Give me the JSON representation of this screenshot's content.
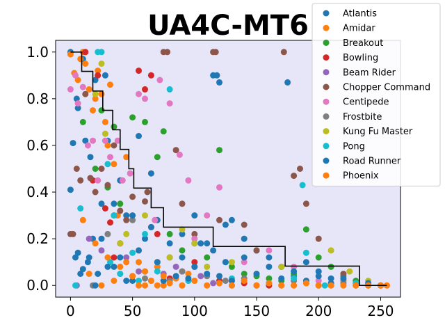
{
  "chart_data": {
    "type": "scatter",
    "title": "UA4C-MT6",
    "xlabel": "",
    "ylabel": "",
    "xlim": [
      -12,
      266
    ],
    "ylim": [
      -0.05,
      1.05
    ],
    "xticks": [
      0,
      50,
      100,
      150,
      200,
      250
    ],
    "xtick_labels": [
      "0",
      "50",
      "100",
      "150",
      "200",
      "250"
    ],
    "yticks": [
      0.0,
      0.2,
      0.4,
      0.6,
      0.8,
      1.0
    ],
    "ytick_labels": [
      "0.0",
      "0.2",
      "0.4",
      "0.6",
      "0.8",
      "1.0"
    ],
    "background": "#e6e6f8",
    "grid": false,
    "legend_position": "top-right",
    "series": [
      {
        "name": "Atlantis",
        "color": "#1f77b4",
        "x": [
          0,
          2,
          4,
          5,
          6,
          8,
          10,
          12,
          14,
          16,
          18,
          20,
          22,
          25,
          28,
          30,
          35,
          40,
          45,
          50,
          55,
          60,
          65,
          70,
          80,
          90,
          100,
          110,
          115,
          118,
          120,
          125,
          130,
          140,
          150,
          160,
          170,
          175,
          180,
          190,
          200,
          210,
          220,
          230,
          240,
          250
        ],
        "y": [
          1.0,
          0.61,
          0.12,
          0.8,
          0.76,
          0.05,
          0.97,
          0.62,
          0.1,
          0.55,
          0.2,
          0.88,
          0.05,
          0.35,
          0.9,
          0.62,
          0.08,
          0.45,
          0.3,
          0.02,
          0.64,
          0.2,
          0.48,
          0.28,
          0.12,
          0.22,
          0.3,
          0.18,
          0.9,
          0.9,
          0.87,
          0.26,
          0.28,
          0.2,
          0.15,
          0.12,
          0.08,
          0.87,
          0.04,
          0.1,
          0.06,
          0.03,
          0.02,
          0.01,
          0.0,
          0.0
        ]
      },
      {
        "name": "Amidar",
        "color": "#ff7f0e",
        "x": [
          0,
          3,
          6,
          8,
          10,
          12,
          15,
          18,
          20,
          22,
          25,
          28,
          30,
          32,
          35,
          38,
          40,
          45,
          50,
          55,
          60,
          65,
          70,
          75,
          80,
          85,
          90,
          95,
          100,
          110,
          120,
          130,
          140,
          150,
          160,
          170,
          180,
          190,
          200,
          210,
          220,
          230,
          240,
          250,
          255
        ],
        "y": [
          0.99,
          0.91,
          0.88,
          0.97,
          1.0,
          0.95,
          0.84,
          0.75,
          0.8,
          0.92,
          0.82,
          0.7,
          0.6,
          0.86,
          0.52,
          0.3,
          0.18,
          0.55,
          0.04,
          0.1,
          0.0,
          0.02,
          0.08,
          0.0,
          0.01,
          0.03,
          0.0,
          0.05,
          0.02,
          0.0,
          0.01,
          0.0,
          0.02,
          0.0,
          0.01,
          0.0,
          0.0,
          0.01,
          0.0,
          0.0,
          0.02,
          0.0,
          0.0,
          0.0,
          0.0
        ]
      },
      {
        "name": "Breakout",
        "color": "#2ca02c",
        "x": [
          10,
          20,
          25,
          30,
          35,
          40,
          50,
          60,
          70,
          75,
          80,
          90,
          100,
          110,
          120,
          125,
          130,
          140,
          150,
          160,
          170,
          180,
          190,
          200,
          210,
          220,
          230
        ],
        "y": [
          0.7,
          0.5,
          0.75,
          0.42,
          0.68,
          0.35,
          0.72,
          0.7,
          0.55,
          0.66,
          0.22,
          0.15,
          0.18,
          0.12,
          0.58,
          0.1,
          0.08,
          0.05,
          0.04,
          0.03,
          0.02,
          0.05,
          0.24,
          0.12,
          0.08,
          0.04,
          0.02
        ]
      },
      {
        "name": "Bowling",
        "color": "#d62728",
        "x": [
          12,
          18,
          22,
          28,
          32,
          35,
          40,
          55,
          60,
          65,
          70,
          80,
          90,
          100,
          120,
          140,
          160
        ],
        "y": [
          1.0,
          0.45,
          0.9,
          0.33,
          0.27,
          0.12,
          0.18,
          0.92,
          0.84,
          0.9,
          0.22,
          0.03,
          0.06,
          0.1,
          0.02,
          0.01,
          0.0
        ]
      },
      {
        "name": "Beam Rider",
        "color": "#9467bd",
        "x": [
          5,
          15,
          25,
          35,
          45,
          55,
          65,
          75,
          85,
          95,
          105,
          115,
          130,
          150
        ],
        "y": [
          0.0,
          0.2,
          0.15,
          0.3,
          0.12,
          0.06,
          0.25,
          0.05,
          0.08,
          0.02,
          0.04,
          0.01,
          0.02,
          0.0
        ]
      },
      {
        "name": "Chopper Command",
        "color": "#8c564b",
        "x": [
          0,
          2,
          5,
          8,
          12,
          16,
          20,
          25,
          30,
          35,
          40,
          45,
          50,
          60,
          62,
          75,
          78,
          85,
          90,
          100,
          115,
          117,
          120,
          140,
          150,
          172,
          180,
          185,
          190,
          200,
          220,
          250
        ],
        "y": [
          0.22,
          0.22,
          0.5,
          0.45,
          0.82,
          0.46,
          0.4,
          0.5,
          0.43,
          0.6,
          0.32,
          0.28,
          0.38,
          0.36,
          0.4,
          1.0,
          1.0,
          0.58,
          0.35,
          0.22,
          1.0,
          1.0,
          0.28,
          0.26,
          0.15,
          1.0,
          0.47,
          0.5,
          0.35,
          0.2,
          0.05,
          0.0
        ]
      },
      {
        "name": "Centipede",
        "color": "#e377c2",
        "x": [
          0,
          4,
          6,
          10,
          14,
          18,
          22,
          28,
          32,
          38,
          42,
          48,
          55,
          60,
          68,
          72,
          80,
          88,
          95,
          100,
          110,
          120,
          140,
          160,
          180,
          200
        ],
        "y": [
          0.84,
          0.9,
          0.78,
          0.85,
          0.6,
          0.62,
          0.45,
          0.62,
          0.55,
          0.62,
          0.45,
          0.48,
          0.82,
          0.8,
          0.28,
          0.88,
          0.78,
          0.56,
          0.45,
          0.2,
          0.3,
          0.42,
          0.1,
          0.15,
          0.08,
          0.02
        ]
      },
      {
        "name": "Frostbite",
        "color": "#7f7f7f",
        "x": [
          18,
          30,
          40,
          50,
          60,
          70,
          80,
          90,
          100,
          110,
          125,
          140,
          160,
          180,
          200,
          220
        ],
        "y": [
          0.0,
          0.22,
          0.05,
          0.28,
          0.03,
          0.1,
          0.02,
          0.06,
          0.08,
          0.04,
          0.02,
          0.03,
          0.01,
          0.02,
          0.0,
          0.01
        ]
      },
      {
        "name": "Kung Fu Master",
        "color": "#bcbd22",
        "x": [
          20,
          25,
          28,
          35,
          40,
          45,
          55,
          60,
          70,
          80,
          90,
          100,
          110,
          130,
          150,
          170,
          190,
          210,
          225,
          240
        ],
        "y": [
          0.82,
          0.95,
          0.65,
          0.3,
          0.18,
          0.22,
          0.15,
          0.3,
          0.1,
          0.12,
          0.24,
          0.18,
          0.08,
          0.1,
          0.05,
          0.08,
          0.02,
          0.15,
          0.06,
          0.02
        ]
      },
      {
        "name": "Pong",
        "color": "#17becf",
        "x": [
          4,
          8,
          22,
          25,
          30,
          32,
          35,
          40,
          50,
          55,
          60,
          70,
          80,
          95,
          110,
          130,
          160,
          180,
          187,
          190,
          205,
          230
        ],
        "y": [
          0.0,
          0.33,
          1.0,
          1.0,
          0.52,
          0.1,
          0.3,
          0.05,
          0.14,
          0.02,
          0.22,
          0.06,
          0.84,
          0.02,
          0.05,
          0.03,
          0.01,
          0.03,
          0.43,
          0.14,
          0.0,
          0.01
        ]
      },
      {
        "name": "Road Runner",
        "color": "#1f77b4",
        "x": [
          0,
          6,
          10,
          15,
          20,
          25,
          30,
          35,
          40,
          45,
          50,
          55,
          60,
          65,
          70,
          75,
          80,
          85,
          90,
          95,
          100,
          105,
          110,
          115,
          120,
          125,
          130,
          140,
          150,
          160,
          170,
          180,
          190,
          200,
          210,
          220,
          230,
          240,
          250
        ],
        "y": [
          0.41,
          0.14,
          0.07,
          0.12,
          0.0,
          0.2,
          0.08,
          0.35,
          0.12,
          0.02,
          0.3,
          0.15,
          0.06,
          0.25,
          0.1,
          0.02,
          0.18,
          0.04,
          0.12,
          0.03,
          0.08,
          0.18,
          0.05,
          0.15,
          0.04,
          0.1,
          0.02,
          0.12,
          0.05,
          0.08,
          0.03,
          0.06,
          0.02,
          0.04,
          0.01,
          0.03,
          0.0,
          0.01,
          0.0
        ]
      },
      {
        "name": "Phoenix",
        "color": "#ff7f0e",
        "x": [
          10,
          15,
          20,
          25,
          30,
          35,
          40,
          45,
          50,
          55,
          60,
          65,
          70,
          75,
          80,
          90,
          100,
          110,
          120,
          130,
          140,
          150,
          160,
          170,
          180,
          190,
          200,
          210,
          220,
          230,
          240,
          250,
          255
        ],
        "y": [
          0.28,
          0.05,
          0.18,
          0.0,
          0.12,
          0.02,
          0.08,
          0.1,
          0.04,
          0.0,
          0.06,
          0.02,
          0.0,
          0.04,
          0.01,
          0.0,
          0.02,
          0.0,
          0.01,
          0.0,
          0.02,
          0.0,
          0.01,
          0.0,
          0.0,
          0.01,
          0.0,
          0.0,
          0.0,
          0.0,
          0.0,
          0.0,
          0.0
        ]
      }
    ],
    "step_line": {
      "color": "#000000",
      "x": [
        0,
        9,
        9,
        18,
        18,
        26,
        26,
        34,
        34,
        40,
        40,
        47,
        47,
        51,
        51,
        65,
        65,
        75,
        75,
        115,
        115,
        173,
        173,
        233,
        233,
        255
      ],
      "y": [
        1.0,
        1.0,
        0.917,
        0.917,
        0.833,
        0.833,
        0.75,
        0.75,
        0.667,
        0.667,
        0.583,
        0.583,
        0.5,
        0.5,
        0.417,
        0.417,
        0.333,
        0.333,
        0.25,
        0.25,
        0.167,
        0.167,
        0.083,
        0.083,
        0.0,
        0.0
      ]
    }
  }
}
